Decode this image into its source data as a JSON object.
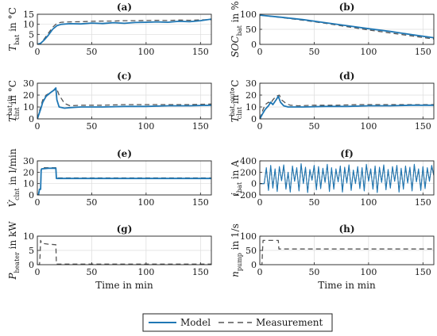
{
  "colors": {
    "model": "#1f77b4",
    "measurement": "#555555",
    "grid": "#dcdcdc",
    "axis": "#222222"
  },
  "legend": {
    "model_label": "Model",
    "measurement_label": "Measurement",
    "placement": "bottom-center"
  },
  "chart_data": [
    {
      "id": "a",
      "panel_label": "(a)",
      "type": "line",
      "ylabel": "T_bat in °C",
      "ylabel_main": "T",
      "ylabel_sub": "bat",
      "ylabel_sup": "",
      "ylabel_unit": " in °C",
      "xlabel": "",
      "xlim": [
        0,
        160
      ],
      "ylim": [
        0,
        15
      ],
      "xticks": [
        0,
        50,
        100,
        150
      ],
      "yticks": [
        0,
        5,
        10,
        15
      ],
      "grid": true,
      "series": [
        {
          "role": "model",
          "x": [
            0,
            3,
            6,
            10,
            14,
            18,
            22,
            30,
            40,
            50,
            60,
            70,
            80,
            90,
            100,
            110,
            120,
            130,
            140,
            150,
            160
          ],
          "y": [
            0,
            0.5,
            2,
            4.5,
            7.5,
            9.3,
            10,
            10.3,
            10.2,
            10.6,
            10.4,
            10.8,
            10.5,
            10.9,
            11,
            11.2,
            11,
            11.5,
            11.3,
            11.8,
            12.6
          ]
        },
        {
          "role": "measurement",
          "x": [
            0,
            3,
            6,
            10,
            14,
            18,
            22,
            30,
            40,
            50,
            60,
            70,
            80,
            90,
            100,
            110,
            120,
            130,
            140,
            150,
            160
          ],
          "y": [
            0,
            0.5,
            2.5,
            5.5,
            8.5,
            10.5,
            11,
            11.2,
            11.3,
            11.5,
            11.6,
            11.6,
            11.8,
            11.8,
            11.9,
            12,
            11.9,
            12.1,
            12,
            12.2,
            12.3
          ]
        }
      ]
    },
    {
      "id": "b",
      "panel_label": "(b)",
      "type": "line",
      "ylabel": "SOC_bat in %",
      "ylabel_main": "SOC",
      "ylabel_sub": "bat",
      "ylabel_sup": "",
      "ylabel_unit": " in %",
      "xlabel": "",
      "xlim": [
        0,
        160
      ],
      "ylim": [
        0,
        100
      ],
      "xticks": [
        0,
        50,
        100,
        150
      ],
      "yticks": [
        0,
        50,
        100
      ],
      "grid": true,
      "series": [
        {
          "role": "model",
          "x": [
            0,
            20,
            40,
            60,
            80,
            100,
            120,
            140,
            160
          ],
          "y": [
            97,
            90,
            82,
            72,
            62,
            52,
            43,
            32,
            22
          ]
        },
        {
          "role": "measurement",
          "x": [
            0,
            20,
            40,
            60,
            80,
            100,
            120,
            140,
            160
          ],
          "y": [
            97,
            89,
            80,
            70,
            59,
            48,
            38,
            28,
            18
          ]
        }
      ]
    },
    {
      "id": "c",
      "panel_label": "(c)",
      "type": "line",
      "ylabel": "T_clnt^bat,in in °C",
      "ylabel_main": "T",
      "ylabel_sub": "clnt",
      "ylabel_sup": "bat, in",
      "ylabel_unit": " in °C",
      "xlabel": "",
      "xlim": [
        0,
        160
      ],
      "ylim": [
        0,
        30
      ],
      "xticks": [
        0,
        50,
        100,
        150
      ],
      "yticks": [
        0,
        10,
        20,
        30
      ],
      "grid": true,
      "series": [
        {
          "role": "model",
          "x": [
            0,
            3,
            5,
            8,
            12,
            15,
            17,
            18,
            20,
            25,
            30,
            40,
            60,
            80,
            100,
            120,
            140,
            160
          ],
          "y": [
            0,
            8,
            14,
            19,
            22,
            24,
            26,
            16,
            10,
            9,
            9.5,
            10,
            10,
            10.5,
            10.5,
            11,
            11,
            11.5
          ]
        },
        {
          "role": "measurement",
          "x": [
            0,
            3,
            5,
            8,
            12,
            15,
            18,
            20,
            25,
            30,
            40,
            60,
            80,
            100,
            120,
            140,
            160
          ],
          "y": [
            0,
            10,
            16,
            20,
            22,
            24,
            25,
            20,
            13,
            11,
            11.5,
            11.5,
            12,
            12,
            12,
            12,
            12.5
          ]
        }
      ]
    },
    {
      "id": "d",
      "panel_label": "(d)",
      "type": "line",
      "ylabel": "T_clnt^bat,out in °C",
      "ylabel_main": "T",
      "ylabel_sub": "clnt",
      "ylabel_sup": "bat, out",
      "ylabel_unit": " in °C",
      "xlabel": "",
      "xlim": [
        0,
        160
      ],
      "ylim": [
        0,
        30
      ],
      "xticks": [
        0,
        50,
        100,
        150
      ],
      "yticks": [
        0,
        10,
        20,
        30
      ],
      "grid": true,
      "series": [
        {
          "role": "model",
          "x": [
            0,
            3,
            5,
            8,
            10,
            12,
            15,
            17,
            19,
            22,
            26,
            30,
            40,
            60,
            80,
            100,
            120,
            140,
            160
          ],
          "y": [
            0,
            5,
            8,
            11,
            14,
            12,
            16,
            19,
            14,
            11,
            10,
            10,
            10,
            10.5,
            10.5,
            11,
            11,
            11.5,
            11.5
          ]
        },
        {
          "role": "measurement",
          "x": [
            0,
            3,
            5,
            8,
            10,
            12,
            15,
            18,
            20,
            24,
            28,
            35,
            50,
            70,
            90,
            110,
            130,
            150,
            160
          ],
          "y": [
            0,
            8,
            12,
            14,
            13,
            16,
            19,
            20,
            16,
            13,
            11.5,
            11,
            11.5,
            11.5,
            12,
            12,
            12,
            12,
            12
          ]
        }
      ]
    },
    {
      "id": "e",
      "panel_label": "(e)",
      "type": "line",
      "ylabel": "V̇_clnt in l/min",
      "ylabel_main": "V̇",
      "ylabel_sub": "clnt",
      "ylabel_sup": "",
      "ylabel_unit": " in l/min",
      "xlabel": "",
      "xlim": [
        0,
        160
      ],
      "ylim": [
        0,
        30
      ],
      "xticks": [
        0,
        50,
        100,
        150
      ],
      "yticks": [
        0,
        10,
        20,
        30
      ],
      "grid": true,
      "series": [
        {
          "role": "model",
          "x": [
            0,
            1,
            2,
            3,
            3.5,
            4,
            5,
            10,
            17,
            17.5,
            18,
            160
          ],
          "y": [
            0,
            0,
            5,
            5,
            22,
            23,
            23,
            23.5,
            23.5,
            14.5,
            14.5,
            14.5
          ]
        },
        {
          "role": "measurement",
          "x": [
            0,
            1,
            2,
            3,
            3.5,
            4,
            5,
            10,
            17,
            17.5,
            18,
            160
          ],
          "y": [
            0,
            0,
            5,
            5,
            21,
            24,
            24,
            24,
            24,
            15,
            15,
            15
          ]
        }
      ]
    },
    {
      "id": "f",
      "panel_label": "(f)",
      "type": "line",
      "ylabel": "i_bat in A",
      "ylabel_main": "i",
      "ylabel_sub": "bat",
      "ylabel_sup": "",
      "ylabel_unit": " in A",
      "xlabel": "",
      "xlim": [
        0,
        160
      ],
      "ylim": [
        -200,
        400
      ],
      "xticks": [
        0,
        50,
        100,
        150
      ],
      "yticks": [
        -200,
        0,
        200,
        400
      ],
      "grid": true,
      "series": [
        {
          "role": "model",
          "x": [
            0,
            4,
            6,
            8,
            10,
            12,
            14,
            16,
            18,
            20,
            22,
            24,
            26,
            28,
            30,
            32,
            34,
            36,
            38,
            40,
            42,
            44,
            46,
            48,
            50,
            52,
            54,
            56,
            58,
            60,
            62,
            64,
            66,
            68,
            70,
            72,
            74,
            76,
            78,
            80,
            82,
            84,
            86,
            88,
            90,
            92,
            94,
            96,
            98,
            100,
            102,
            104,
            106,
            108,
            110,
            112,
            114,
            116,
            118,
            120,
            122,
            124,
            126,
            128,
            130,
            132,
            134,
            136,
            138,
            140,
            142,
            144,
            146,
            148,
            150,
            152,
            154,
            156,
            158,
            160
          ],
          "y": [
            0,
            0,
            280,
            -120,
            320,
            -80,
            260,
            -140,
            300,
            50,
            330,
            -100,
            200,
            -150,
            310,
            40,
            280,
            -130,
            350,
            0,
            290,
            -160,
            250,
            60,
            320,
            -110,
            300,
            -90,
            270,
            20,
            340,
            -140,
            280,
            -100,
            260,
            30,
            310,
            -150,
            290,
            10,
            330,
            -120,
            240,
            0,
            300,
            -90,
            280,
            -130,
            340,
            40,
            260,
            -100,
            310,
            -160,
            290,
            20,
            330,
            -110,
            250,
            -80,
            300,
            40,
            320,
            -150,
            270,
            -100,
            310,
            10,
            290,
            -130,
            340,
            30,
            260,
            -120,
            300,
            -90,
            280,
            40,
            320,
            150
          ]
        },
        {
          "role": "measurement",
          "x": [
            0,
            4,
            6,
            8,
            10,
            12,
            14,
            16,
            18,
            20,
            22,
            24,
            26,
            28,
            30,
            32,
            34,
            36,
            38,
            40,
            42,
            44,
            46,
            48,
            50,
            52,
            54,
            56,
            58,
            60,
            62,
            64,
            66,
            68,
            70,
            72,
            74,
            76,
            78,
            80,
            82,
            84,
            86,
            88,
            90,
            92,
            94,
            96,
            98,
            100,
            102,
            104,
            106,
            108,
            110,
            112,
            114,
            116,
            118,
            120,
            122,
            124,
            126,
            128,
            130,
            132,
            134,
            136,
            138,
            140,
            142,
            144,
            146,
            148,
            150,
            152,
            154,
            156,
            158,
            160
          ],
          "y": [
            0,
            0,
            260,
            -100,
            300,
            -60,
            240,
            -120,
            280,
            60,
            310,
            -80,
            190,
            -130,
            290,
            50,
            260,
            -110,
            330,
            10,
            270,
            -140,
            230,
            70,
            300,
            -90,
            280,
            -70,
            250,
            30,
            320,
            -120,
            260,
            -80,
            240,
            40,
            290,
            -130,
            270,
            20,
            310,
            -100,
            220,
            10,
            280,
            -70,
            260,
            -110,
            320,
            50,
            240,
            -80,
            290,
            -140,
            270,
            30,
            310,
            -90,
            230,
            -60,
            280,
            50,
            300,
            -130,
            250,
            -80,
            290,
            20,
            270,
            -110,
            320,
            40,
            240,
            -100,
            280,
            -70,
            260,
            50,
            300,
            140
          ]
        }
      ]
    },
    {
      "id": "g",
      "panel_label": "(g)",
      "type": "line",
      "ylabel": "P_heater in kW",
      "ylabel_main": "P",
      "ylabel_sub": "heater",
      "ylabel_sup": "",
      "ylabel_unit": " in kW",
      "xlabel": "Time in min",
      "xlim": [
        0,
        160
      ],
      "ylim": [
        0,
        10
      ],
      "xticks": [
        0,
        50,
        100,
        150
      ],
      "yticks": [
        0,
        5,
        10
      ],
      "grid": true,
      "series": [
        {
          "role": "measurement",
          "x": [
            0,
            2,
            2.5,
            3,
            4,
            10,
            17,
            17.5,
            18,
            160
          ],
          "y": [
            0,
            0,
            3,
            8.5,
            7.5,
            7.2,
            7,
            0.2,
            0.2,
            0.2
          ]
        }
      ]
    },
    {
      "id": "h",
      "panel_label": "(h)",
      "type": "line",
      "ylabel": "n_pump in 1/s",
      "ylabel_main": "n",
      "ylabel_sub": "pump",
      "ylabel_sup": "",
      "ylabel_unit": " in 1/s",
      "xlabel": "Time in min",
      "xlim": [
        0,
        160
      ],
      "ylim": [
        0,
        100
      ],
      "xticks": [
        0,
        50,
        100,
        150
      ],
      "yticks": [
        0,
        50,
        100
      ],
      "grid": true,
      "series": [
        {
          "role": "measurement",
          "x": [
            0,
            2,
            2.5,
            3,
            5,
            10,
            17,
            17.5,
            18,
            160
          ],
          "y": [
            0,
            0,
            50,
            85,
            85,
            85,
            85,
            55,
            55,
            55
          ]
        }
      ]
    }
  ]
}
